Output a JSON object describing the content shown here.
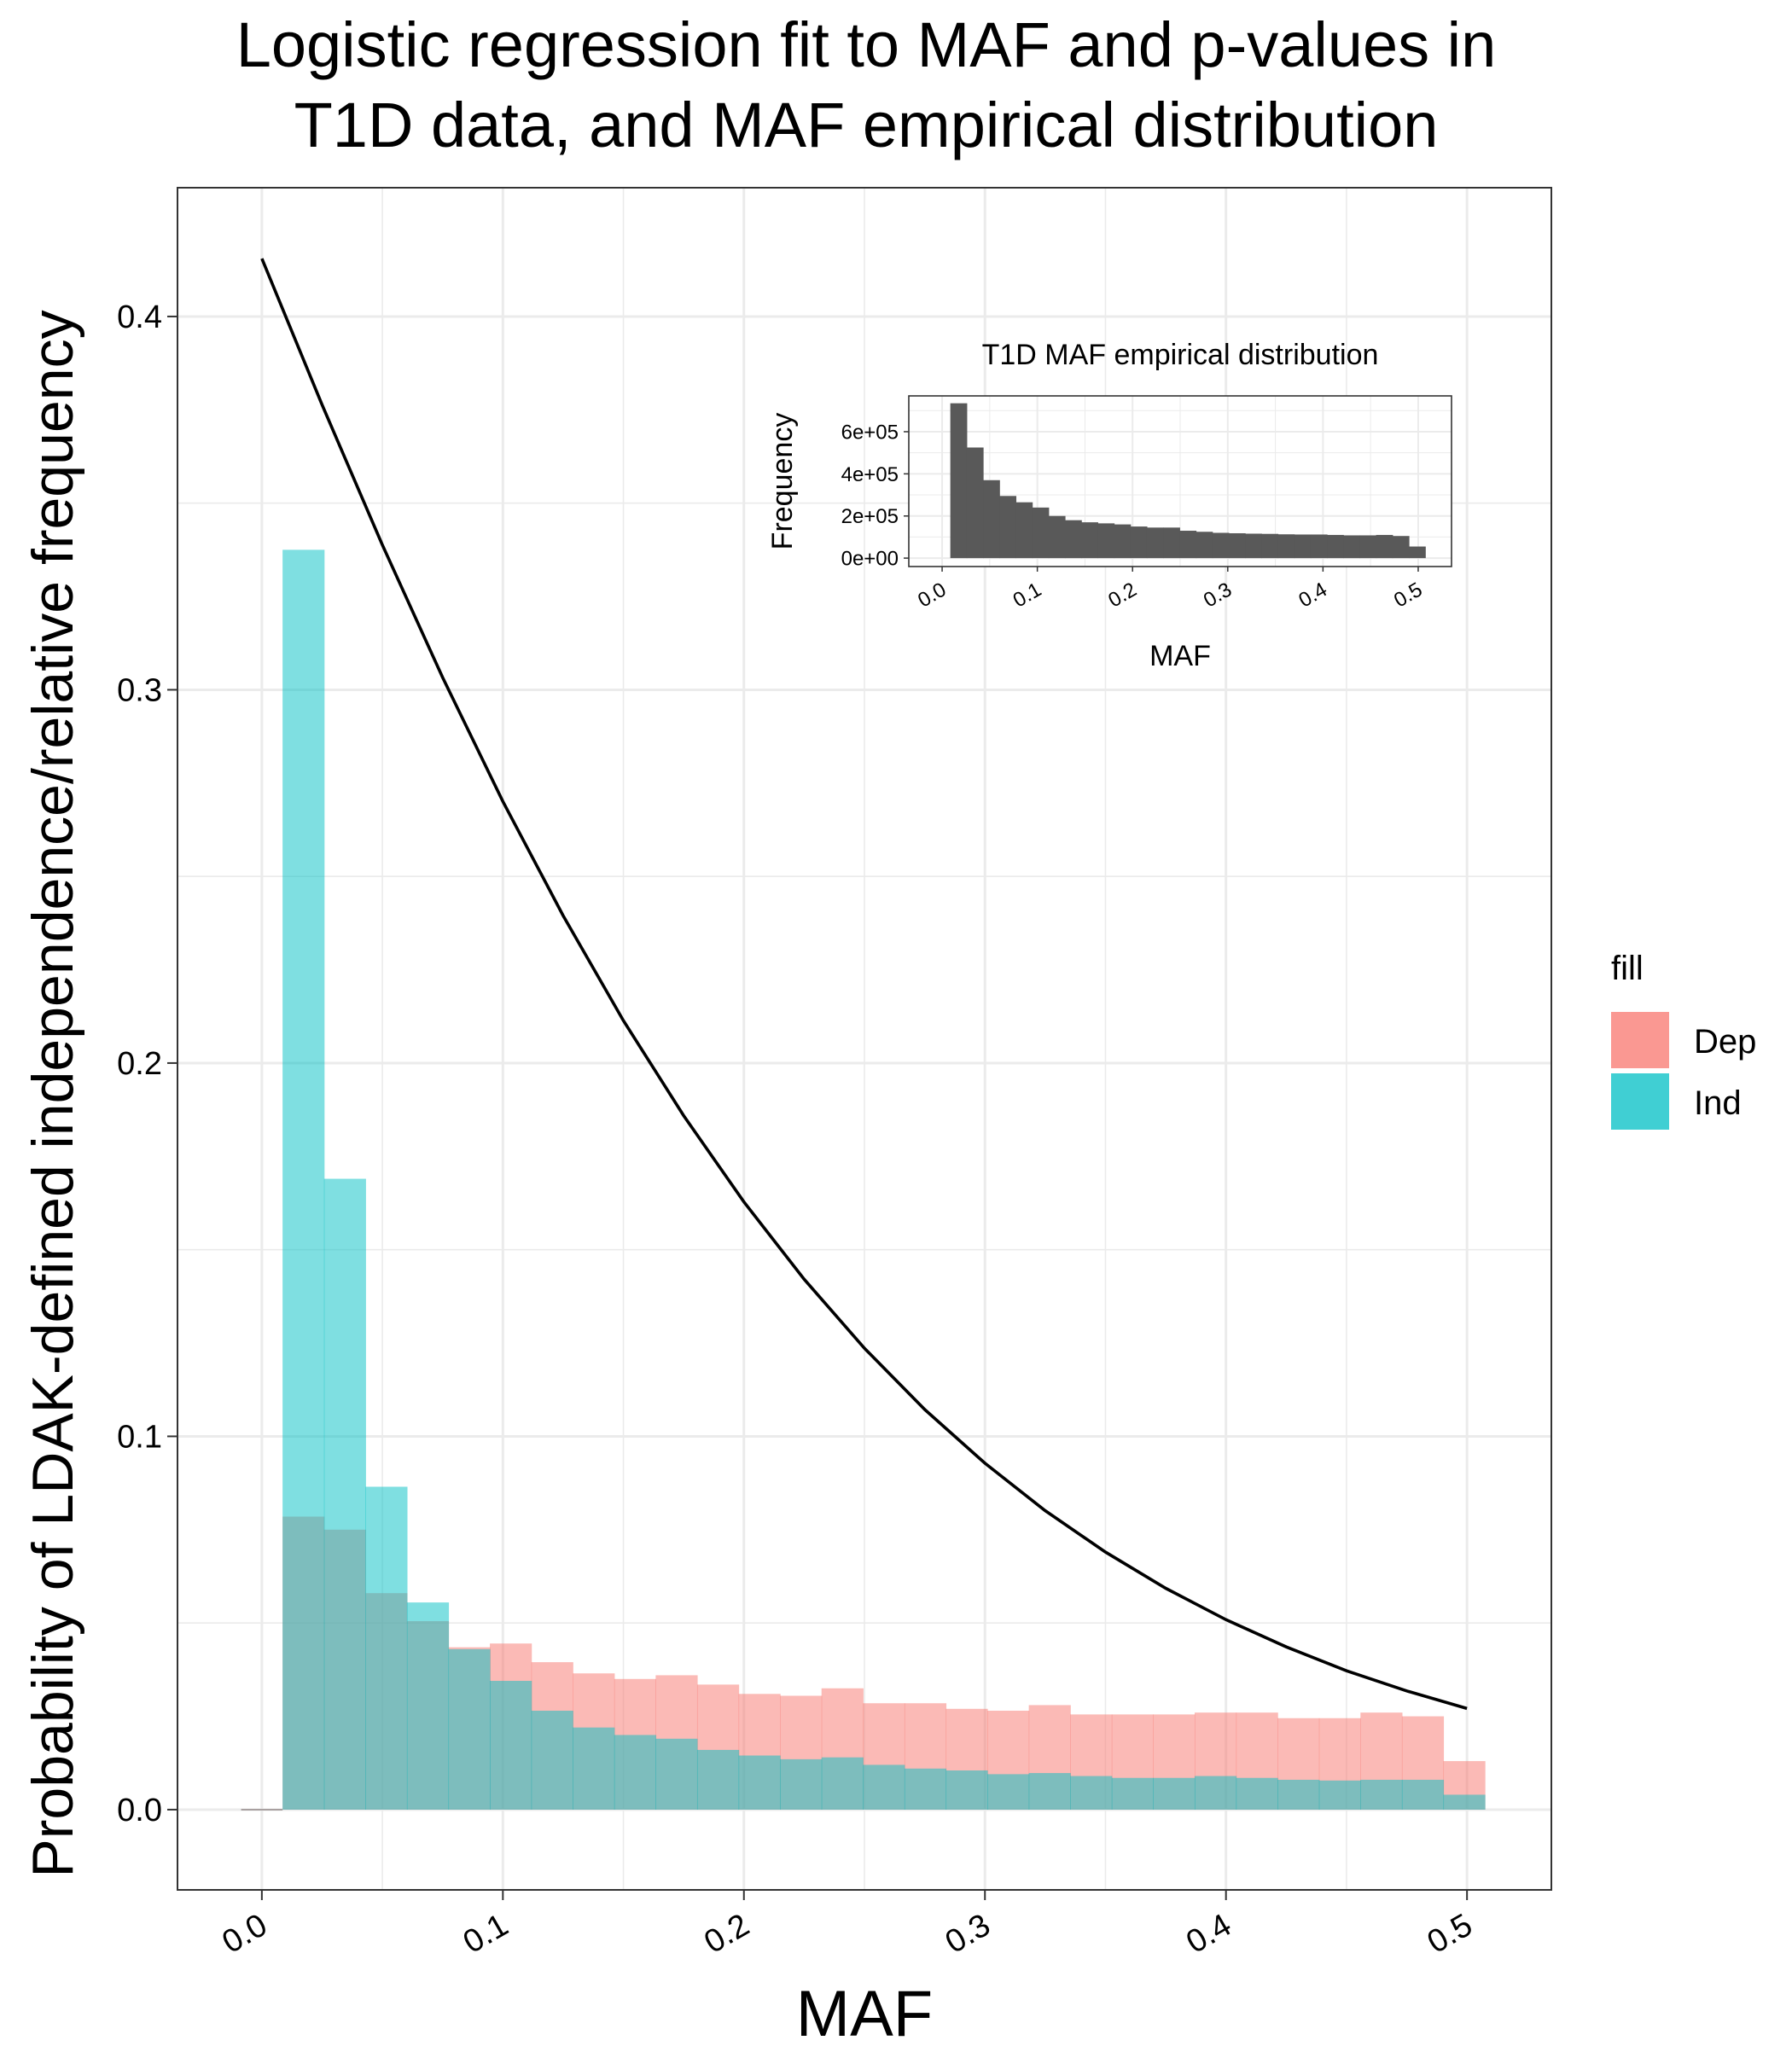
{
  "chart_data": [
    {
      "type": "bar",
      "title": "Logistic regression fit to MAF and p-values in T1D data, and MAF empirical distribution",
      "title_lines": [
        "Logistic regression fit to MAF and p-values in",
        "T1D data, and MAF empirical distribution"
      ],
      "xlabel": "MAF",
      "ylabel": "Probability of LDAK-defined independence/relative frequency",
      "xlim": [
        -0.035,
        0.535
      ],
      "ylim": [
        -0.0215,
        0.4345
      ],
      "x_ticks": [
        0.0,
        0.1,
        0.2,
        0.3,
        0.4,
        0.5
      ],
      "x_tick_labels": [
        "0.0",
        "0.1",
        "0.2",
        "0.3",
        "0.4",
        "0.5"
      ],
      "y_ticks": [
        0.0,
        0.1,
        0.2,
        0.3,
        0.4
      ],
      "y_tick_labels": [
        "0.0",
        "0.1",
        "0.2",
        "0.3",
        "0.4"
      ],
      "grid": true,
      "bin_width": 0.0172,
      "bin_start": -0.0086,
      "legend": {
        "title": "fill",
        "placement": "right",
        "entries": [
          {
            "label": "Dep",
            "color": "#F8766D"
          },
          {
            "label": "Ind",
            "color": "#00BFC4"
          }
        ]
      },
      "bar_opacity": 0.5,
      "series": [
        {
          "name": "Dep",
          "color": "#F8766D",
          "values": [
            0.0,
            0.0785,
            0.075,
            0.058,
            0.0505,
            0.0435,
            0.0445,
            0.0395,
            0.0365,
            0.035,
            0.036,
            0.0335,
            0.031,
            0.0305,
            0.0325,
            0.0285,
            0.0285,
            0.027,
            0.0265,
            0.028,
            0.0255,
            0.0255,
            0.0255,
            0.026,
            0.026,
            0.0245,
            0.0245,
            0.026,
            0.025,
            0.013
          ]
        },
        {
          "name": "Ind",
          "color": "#00BFC4",
          "values": [
            0.0,
            0.3375,
            0.169,
            0.0865,
            0.0555,
            0.043,
            0.0345,
            0.0265,
            0.022,
            0.02,
            0.019,
            0.016,
            0.0145,
            0.0135,
            0.014,
            0.012,
            0.011,
            0.0105,
            0.0095,
            0.0098,
            0.009,
            0.0085,
            0.0085,
            0.009,
            0.0085,
            0.008,
            0.0078,
            0.008,
            0.008,
            0.004
          ]
        },
        {
          "name": "",
          "type": "line",
          "color": "#000000",
          "x": [
            0.0,
            0.025,
            0.05,
            0.075,
            0.1,
            0.125,
            0.15,
            0.175,
            0.2,
            0.225,
            0.25,
            0.275,
            0.3,
            0.325,
            0.35,
            0.375,
            0.4,
            0.425,
            0.45,
            0.475,
            0.5
          ],
          "y": [
            0.4155,
            0.3763,
            0.3388,
            0.3033,
            0.2701,
            0.2395,
            0.2114,
            0.1859,
            0.1628,
            0.1421,
            0.1236,
            0.1072,
            0.0928,
            0.0801,
            0.069,
            0.0593,
            0.0509,
            0.0436,
            0.0372,
            0.0318,
            0.0271
          ]
        }
      ]
    },
    {
      "type": "bar",
      "title": "T1D MAF empirical distribution",
      "xlabel": "MAF",
      "ylabel": "Frequency",
      "xlim": [
        -0.035,
        0.535
      ],
      "ylim": [
        -40000,
        770000
      ],
      "x_ticks": [
        0.0,
        0.1,
        0.2,
        0.3,
        0.4,
        0.5
      ],
      "x_tick_labels": [
        "0.0",
        "0.1",
        "0.2",
        "0.3",
        "0.4",
        "0.5"
      ],
      "y_ticks": [
        0,
        200000,
        400000,
        600000
      ],
      "y_tick_labels": [
        "0e+00",
        "2e+05",
        "4e+05",
        "6e+05"
      ],
      "grid": true,
      "bin_width": 0.0172,
      "bin_start": -0.0086,
      "series": [
        {
          "name": "",
          "color": "#595959",
          "values": [
            0,
            735000,
            525000,
            370000,
            295000,
            265000,
            240000,
            200000,
            180000,
            170000,
            165000,
            160000,
            150000,
            145000,
            145000,
            130000,
            125000,
            120000,
            118000,
            116000,
            115000,
            113000,
            112000,
            112000,
            110000,
            108000,
            108000,
            110000,
            105000,
            55000
          ]
        }
      ]
    }
  ]
}
